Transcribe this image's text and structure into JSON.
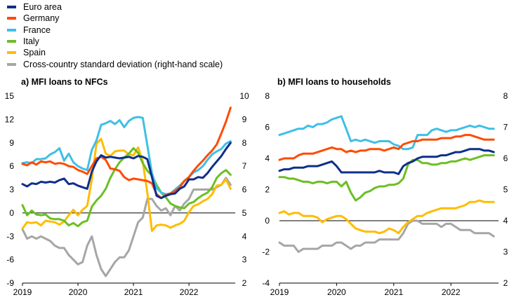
{
  "legend": {
    "items": [
      {
        "label": "Euro area",
        "color": "#0d2f8a"
      },
      {
        "label": "Germany",
        "color": "#ff4b00"
      },
      {
        "label": "France",
        "color": "#3fbfe6"
      },
      {
        "label": "Italy",
        "color": "#6bbf23"
      },
      {
        "label": "Spain",
        "color": "#ffbc00"
      },
      {
        "label": "Cross-country standard deviation (right-hand scale)",
        "color": "#a6a6a6"
      }
    ]
  },
  "chart_data": [
    {
      "type": "line",
      "title": "a) MFI loans to NFCs",
      "x_tick_labels": [
        "2019",
        "2020",
        "2021",
        "2022"
      ],
      "x": [
        "2019-01",
        "2019-02",
        "2019-03",
        "2019-04",
        "2019-05",
        "2019-06",
        "2019-07",
        "2019-08",
        "2019-09",
        "2019-10",
        "2019-11",
        "2019-12",
        "2020-01",
        "2020-02",
        "2020-03",
        "2020-04",
        "2020-05",
        "2020-06",
        "2020-07",
        "2020-08",
        "2020-09",
        "2020-10",
        "2020-11",
        "2020-12",
        "2021-01",
        "2021-02",
        "2021-03",
        "2021-04",
        "2021-05",
        "2021-06",
        "2021-07",
        "2021-08",
        "2021-09",
        "2021-10",
        "2021-11",
        "2021-12",
        "2022-01",
        "2022-02",
        "2022-03",
        "2022-04",
        "2022-05",
        "2022-06",
        "2022-07",
        "2022-08",
        "2022-09",
        "2022-10"
      ],
      "y_left": {
        "min": -9,
        "max": 15,
        "ticks": [
          -9,
          -6,
          -3,
          0,
          3,
          6,
          9,
          12,
          15
        ]
      },
      "y_right": {
        "min": 2,
        "max": 10,
        "ticks": [
          2,
          3,
          4,
          5,
          6,
          7,
          8,
          9,
          10
        ]
      },
      "series": [
        {
          "name": "Euro area",
          "axis": "left",
          "values": [
            3.7,
            3.4,
            3.8,
            3.7,
            4.0,
            3.9,
            4.0,
            3.9,
            4.2,
            4.4,
            3.7,
            3.8,
            3.5,
            3.3,
            3.1,
            5.3,
            6.6,
            7.4,
            7.1,
            7.2,
            7.1,
            7.0,
            7.1,
            7.2,
            7.0,
            7.3,
            7.2,
            6.9,
            4.6,
            2.2,
            1.9,
            2.2,
            2.4,
            2.5,
            3.1,
            3.4,
            4.3,
            4.3,
            4.6,
            4.5,
            5.1,
            5.9,
            6.6,
            7.3,
            8.2,
            9.0
          ]
        },
        {
          "name": "Germany",
          "axis": "left",
          "values": [
            6.3,
            6.1,
            6.5,
            6.2,
            6.6,
            6.5,
            6.6,
            6.3,
            6.4,
            6.3,
            6.0,
            5.9,
            5.5,
            5.3,
            5.0,
            6.0,
            7.0,
            7.2,
            6.8,
            5.7,
            5.6,
            5.4,
            4.6,
            4.2,
            4.4,
            4.3,
            4.2,
            4.1,
            3.8,
            2.4,
            1.9,
            2.3,
            2.5,
            2.8,
            3.3,
            4.1,
            4.6,
            5.4,
            6.1,
            6.7,
            7.4,
            8.0,
            8.8,
            10.2,
            11.7,
            13.5
          ]
        },
        {
          "name": "France",
          "axis": "left",
          "values": [
            6.4,
            6.5,
            6.4,
            6.9,
            6.9,
            7.0,
            7.5,
            7.8,
            8.3,
            6.7,
            7.6,
            6.5,
            6.0,
            5.7,
            5.5,
            8.1,
            9.3,
            11.3,
            11.5,
            11.8,
            11.4,
            11.9,
            11.0,
            11.8,
            12.2,
            12.3,
            12.2,
            8.7,
            5.1,
            3.2,
            2.6,
            2.4,
            2.5,
            3.0,
            3.5,
            4.1,
            4.6,
            5.2,
            5.5,
            6.0,
            6.8,
            7.5,
            7.9,
            8.2,
            8.9,
            9.2
          ]
        },
        {
          "name": "Italy",
          "axis": "left",
          "values": [
            1.0,
            -0.3,
            0.3,
            -0.2,
            -0.3,
            -0.2,
            -0.7,
            -0.8,
            -0.8,
            -1.0,
            -1.6,
            -1.3,
            -1.7,
            -1.2,
            -1.0,
            0.8,
            1.6,
            2.2,
            3.1,
            4.5,
            5.6,
            6.5,
            7.1,
            7.6,
            8.3,
            7.7,
            6.4,
            5.4,
            4.8,
            3.6,
            2.6,
            2.0,
            1.2,
            0.9,
            0.7,
            0.6,
            1.2,
            1.4,
            1.9,
            2.3,
            2.6,
            3.3,
            4.5,
            5.1,
            5.5,
            4.9
          ]
        },
        {
          "name": "Spain",
          "axis": "left",
          "values": [
            -2.0,
            -1.2,
            -1.3,
            -1.2,
            -1.6,
            -1.0,
            -1.1,
            -1.2,
            -1.5,
            -1.1,
            -0.3,
            0.4,
            -0.3,
            0.4,
            0.9,
            4.3,
            8.9,
            9.5,
            7.6,
            7.3,
            7.9,
            8.0,
            8.0,
            7.5,
            7.4,
            8.4,
            6.6,
            2.6,
            -2.3,
            -1.6,
            -1.5,
            -1.6,
            -1.9,
            -1.6,
            -1.4,
            -1.0,
            0.1,
            0.9,
            1.1,
            1.5,
            1.8,
            2.4,
            3.5,
            3.6,
            4.3,
            3.1
          ]
        },
        {
          "name": "Cross-country standard deviation (right-hand scale)",
          "axis": "right",
          "values": [
            4.3,
            3.9,
            4.0,
            3.9,
            4.0,
            3.9,
            3.8,
            3.6,
            3.5,
            3.5,
            3.2,
            3.0,
            2.8,
            2.9,
            3.6,
            4.0,
            3.2,
            2.6,
            2.3,
            2.6,
            2.9,
            3.1,
            3.1,
            3.4,
            4.0,
            4.6,
            4.8,
            5.6,
            5.6,
            5.3,
            5.1,
            5.2,
            4.9,
            5.3,
            5.1,
            5.4,
            5.6,
            6.0,
            6.0,
            6.0,
            6.0,
            6.0,
            6.1,
            6.2,
            6.5,
            6.2
          ]
        }
      ]
    },
    {
      "type": "line",
      "title": "b) MFI loans to households",
      "x_tick_labels": [
        "2019",
        "2020",
        "2021",
        "2022"
      ],
      "x": [
        "2019-01",
        "2019-02",
        "2019-03",
        "2019-04",
        "2019-05",
        "2019-06",
        "2019-07",
        "2019-08",
        "2019-09",
        "2019-10",
        "2019-11",
        "2019-12",
        "2020-01",
        "2020-02",
        "2020-03",
        "2020-04",
        "2020-05",
        "2020-06",
        "2020-07",
        "2020-08",
        "2020-09",
        "2020-10",
        "2020-11",
        "2020-12",
        "2021-01",
        "2021-02",
        "2021-03",
        "2021-04",
        "2021-05",
        "2021-06",
        "2021-07",
        "2021-08",
        "2021-09",
        "2021-10",
        "2021-11",
        "2021-12",
        "2022-01",
        "2022-02",
        "2022-03",
        "2022-04",
        "2022-05",
        "2022-06",
        "2022-07",
        "2022-08",
        "2022-09",
        "2022-10"
      ],
      "y_left": {
        "min": -4,
        "max": 8,
        "ticks": [
          -4,
          -2,
          0,
          2,
          4,
          6,
          8
        ]
      },
      "y_right": {
        "min": 2,
        "max": 8,
        "ticks": [
          2,
          3,
          4,
          5,
          6,
          7,
          8
        ]
      },
      "series": [
        {
          "name": "Euro area",
          "axis": "left",
          "values": [
            3.2,
            3.3,
            3.3,
            3.4,
            3.4,
            3.4,
            3.5,
            3.5,
            3.5,
            3.6,
            3.7,
            3.8,
            3.5,
            3.1,
            3.1,
            3.1,
            3.1,
            3.1,
            3.1,
            3.1,
            3.1,
            3.2,
            3.1,
            3.1,
            3.1,
            3.0,
            3.5,
            3.7,
            3.8,
            4.0,
            4.1,
            4.1,
            4.1,
            4.1,
            4.2,
            4.2,
            4.3,
            4.4,
            4.4,
            4.5,
            4.6,
            4.6,
            4.6,
            4.5,
            4.5,
            4.4
          ]
        },
        {
          "name": "Germany",
          "axis": "left",
          "values": [
            3.9,
            4.0,
            4.0,
            4.0,
            4.2,
            4.3,
            4.3,
            4.3,
            4.4,
            4.5,
            4.6,
            4.7,
            4.6,
            4.6,
            4.4,
            4.5,
            4.4,
            4.5,
            4.5,
            4.6,
            4.6,
            4.6,
            4.5,
            4.6,
            4.7,
            4.6,
            4.9,
            5.0,
            5.1,
            5.1,
            5.2,
            5.2,
            5.2,
            5.2,
            5.3,
            5.3,
            5.3,
            5.4,
            5.4,
            5.5,
            5.5,
            5.4,
            5.3,
            5.2,
            5.2,
            5.2
          ]
        },
        {
          "name": "France",
          "axis": "left",
          "values": [
            5.5,
            5.6,
            5.7,
            5.8,
            5.9,
            5.9,
            6.1,
            6.0,
            6.2,
            6.2,
            6.3,
            6.5,
            6.6,
            6.7,
            5.9,
            5.1,
            5.2,
            5.1,
            5.2,
            5.1,
            5.0,
            5.1,
            5.1,
            5.1,
            4.9,
            4.8,
            4.6,
            4.6,
            4.7,
            5.5,
            5.5,
            5.5,
            5.8,
            5.9,
            5.8,
            5.7,
            5.8,
            5.8,
            5.9,
            6.0,
            6.1,
            6.0,
            6.1,
            6.0,
            5.9,
            5.9
          ]
        },
        {
          "name": "Italy",
          "axis": "left",
          "values": [
            2.8,
            2.8,
            2.7,
            2.7,
            2.6,
            2.5,
            2.5,
            2.4,
            2.5,
            2.5,
            2.4,
            2.5,
            2.5,
            2.2,
            2.5,
            1.8,
            1.3,
            1.5,
            1.8,
            1.9,
            2.1,
            2.2,
            2.2,
            2.3,
            2.3,
            2.4,
            2.7,
            3.6,
            3.9,
            3.9,
            3.7,
            3.7,
            3.6,
            3.6,
            3.7,
            3.7,
            3.8,
            3.8,
            3.9,
            4.0,
            3.9,
            4.0,
            4.1,
            4.2,
            4.2,
            4.2
          ]
        },
        {
          "name": "Spain",
          "axis": "left",
          "values": [
            0.5,
            0.6,
            0.4,
            0.5,
            0.5,
            0.3,
            0.3,
            0.3,
            0.2,
            -0.1,
            0.1,
            0.2,
            0.3,
            0.3,
            0.1,
            -0.2,
            -0.5,
            -0.6,
            -0.7,
            -0.7,
            -0.7,
            -0.8,
            -0.7,
            -0.5,
            -0.6,
            -0.8,
            -0.4,
            -0.1,
            0.1,
            0.3,
            0.3,
            0.5,
            0.6,
            0.7,
            0.8,
            0.8,
            0.8,
            0.8,
            0.9,
            1.0,
            1.2,
            1.2,
            1.3,
            1.2,
            1.2,
            1.2
          ]
        },
        {
          "name": "Cross-country standard deviation (right-hand scale)",
          "axis": "right",
          "values": [
            3.3,
            3.2,
            3.2,
            3.2,
            3.0,
            3.1,
            3.1,
            3.1,
            3.1,
            3.2,
            3.2,
            3.2,
            3.3,
            3.3,
            3.2,
            3.1,
            3.2,
            3.2,
            3.3,
            3.3,
            3.3,
            3.4,
            3.4,
            3.4,
            3.4,
            3.4,
            3.6,
            3.9,
            4.0,
            4.0,
            3.9,
            3.9,
            3.9,
            3.9,
            3.8,
            3.9,
            3.9,
            3.8,
            3.7,
            3.7,
            3.7,
            3.6,
            3.6,
            3.6,
            3.6,
            3.5
          ]
        }
      ]
    }
  ]
}
